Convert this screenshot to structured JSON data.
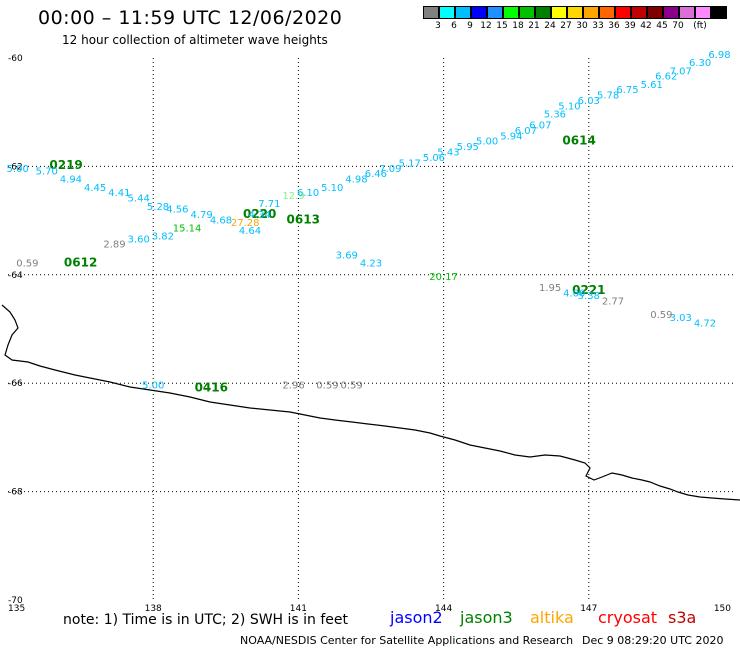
{
  "header": {
    "title": "00:00 – 11:59 UTC 12/06/2020",
    "subtitle": "12 hour collection of altimeter wave heights"
  },
  "colorbar": {
    "colors": [
      "#808080",
      "#00ffff",
      "#00bfff",
      "#0000ff",
      "#1e90ff",
      "#00ff00",
      "#00c000",
      "#008000",
      "#ffff00",
      "#ffd700",
      "#ffa500",
      "#ff6600",
      "#ff0000",
      "#c00000",
      "#800000",
      "#8b008b",
      "#da70d6",
      "#ff88ff",
      "#000000"
    ],
    "labels": [
      "3",
      "6",
      "9",
      "12",
      "15",
      "18",
      "21",
      "24",
      "27",
      "30",
      "33",
      "36",
      "39",
      "42",
      "45",
      "70",
      "(ft)"
    ]
  },
  "axes": {
    "x_ticks": [
      "135",
      "138",
      "141",
      "144",
      "147",
      "150"
    ],
    "y_ticks": [
      "-60",
      "-62",
      "-64",
      "-66",
      "-68",
      "-70"
    ]
  },
  "tracks": [
    {
      "time": "0219",
      "color": "#008000"
    },
    {
      "time": "0220",
      "color": "#008000"
    },
    {
      "time": "0613",
      "color": "#008000"
    },
    {
      "time": "0612",
      "color": "#008000"
    },
    {
      "time": "0614",
      "color": "#008000"
    },
    {
      "time": "0221",
      "color": "#008000"
    },
    {
      "time": "0416",
      "color": "#008000"
    }
  ],
  "observations": [
    {
      "lon": 135.2,
      "lat": -62.1,
      "v": "5.00",
      "c": "#00bfff"
    },
    {
      "lon": 135.8,
      "lat": -62.15,
      "v": "5.70",
      "c": "#00bfff"
    },
    {
      "lon": 136.3,
      "lat": -62.3,
      "v": "4.94",
      "c": "#00bfff"
    },
    {
      "lon": 136.8,
      "lat": -62.45,
      "v": "4.45",
      "c": "#00bfff"
    },
    {
      "lon": 137.3,
      "lat": -62.55,
      "v": "4.41",
      "c": "#00bfff"
    },
    {
      "lon": 137.7,
      "lat": -62.65,
      "v": "5.44",
      "c": "#00bfff"
    },
    {
      "lon": 138.1,
      "lat": -62.8,
      "v": "5.28",
      "c": "#00bfff"
    },
    {
      "lon": 138.5,
      "lat": -62.85,
      "v": "4.56",
      "c": "#00bfff"
    },
    {
      "lon": 139.0,
      "lat": -62.95,
      "v": "4.79",
      "c": "#00bfff"
    },
    {
      "lon": 139.4,
      "lat": -63.05,
      "v": "4.68",
      "c": "#00bfff"
    },
    {
      "lon": 139.9,
      "lat": -63.1,
      "v": "27.28",
      "c": "#ffa500"
    },
    {
      "lon": 140.2,
      "lat": -62.95,
      "v": "4.34",
      "c": "#00bfff"
    },
    {
      "lon": 140.0,
      "lat": -63.25,
      "v": "4.64",
      "c": "#00bfff"
    },
    {
      "lon": 140.4,
      "lat": -62.75,
      "v": "7.71",
      "c": "#00bfff"
    },
    {
      "lon": 140.9,
      "lat": -62.6,
      "v": "12.9",
      "c": "#90ee90"
    },
    {
      "lon": 141.2,
      "lat": -62.55,
      "v": "6.10",
      "c": "#00bfff"
    },
    {
      "lon": 141.7,
      "lat": -62.45,
      "v": "5.10",
      "c": "#00bfff"
    },
    {
      "lon": 142.2,
      "lat": -62.3,
      "v": "4.98",
      "c": "#00bfff"
    },
    {
      "lon": 142.6,
      "lat": -62.2,
      "v": "6.46",
      "c": "#00bfff"
    },
    {
      "lon": 142.9,
      "lat": -62.1,
      "v": "7.09",
      "c": "#00bfff"
    },
    {
      "lon": 143.3,
      "lat": -62.0,
      "v": "5.17",
      "c": "#00bfff"
    },
    {
      "lon": 143.8,
      "lat": -61.9,
      "v": "5.06",
      "c": "#00bfff"
    },
    {
      "lon": 144.1,
      "lat": -61.8,
      "v": "5.43",
      "c": "#00bfff"
    },
    {
      "lon": 144.5,
      "lat": -61.7,
      "v": "5.95",
      "c": "#00bfff"
    },
    {
      "lon": 144.9,
      "lat": -61.6,
      "v": "5.00",
      "c": "#00bfff"
    },
    {
      "lon": 145.4,
      "lat": -61.5,
      "v": "5.94",
      "c": "#00bfff"
    },
    {
      "lon": 145.7,
      "lat": -61.4,
      "v": "6.07",
      "c": "#00bfff"
    },
    {
      "lon": 146.0,
      "lat": -61.3,
      "v": "6.07",
      "c": "#00bfff"
    },
    {
      "lon": 146.3,
      "lat": -61.1,
      "v": "5.36",
      "c": "#00bfff"
    },
    {
      "lon": 146.6,
      "lat": -60.95,
      "v": "5.10",
      "c": "#00bfff"
    },
    {
      "lon": 147.0,
      "lat": -60.85,
      "v": "6.03",
      "c": "#00bfff"
    },
    {
      "lon": 147.4,
      "lat": -60.75,
      "v": "5.78",
      "c": "#00bfff"
    },
    {
      "lon": 147.8,
      "lat": -60.65,
      "v": "6.75",
      "c": "#00bfff"
    },
    {
      "lon": 148.3,
      "lat": -60.55,
      "v": "5.61",
      "c": "#00bfff"
    },
    {
      "lon": 148.6,
      "lat": -60.4,
      "v": "6.62",
      "c": "#00bfff"
    },
    {
      "lon": 148.9,
      "lat": -60.3,
      "v": "7.07",
      "c": "#00bfff"
    },
    {
      "lon": 149.3,
      "lat": -60.15,
      "v": "6.30",
      "c": "#00bfff"
    },
    {
      "lon": 149.7,
      "lat": -60.0,
      "v": "6.98",
      "c": "#00bfff"
    },
    {
      "lon": 135.4,
      "lat": -63.85,
      "v": "0.59",
      "c": "#808080"
    },
    {
      "lon": 137.2,
      "lat": -63.5,
      "v": "2.89",
      "c": "#808080"
    },
    {
      "lon": 137.7,
      "lat": -63.4,
      "v": "3.60",
      "c": "#00bfff"
    },
    {
      "lon": 138.2,
      "lat": -63.35,
      "v": "3.82",
      "c": "#00bfff"
    },
    {
      "lon": 138.7,
      "lat": -63.2,
      "v": "15.14",
      "c": "#00c000"
    },
    {
      "lon": 142.0,
      "lat": -63.7,
      "v": "3.69",
      "c": "#00bfff"
    },
    {
      "lon": 142.5,
      "lat": -63.85,
      "v": "4.23",
      "c": "#00bfff"
    },
    {
      "lon": 144.0,
      "lat": -64.1,
      "v": "20.17",
      "c": "#00c000"
    },
    {
      "lon": 146.2,
      "lat": -64.3,
      "v": "1.95",
      "c": "#808080"
    },
    {
      "lon": 146.7,
      "lat": -64.4,
      "v": "4.00",
      "c": "#00bfff"
    },
    {
      "lon": 147.0,
      "lat": -64.45,
      "v": "5.38",
      "c": "#00bfff"
    },
    {
      "lon": 147.5,
      "lat": -64.55,
      "v": "2.77",
      "c": "#808080"
    },
    {
      "lon": 148.5,
      "lat": -64.8,
      "v": "0.59",
      "c": "#808080"
    },
    {
      "lon": 148.9,
      "lat": -64.85,
      "v": "3.03",
      "c": "#00bfff"
    },
    {
      "lon": 149.4,
      "lat": -64.95,
      "v": "4.72",
      "c": "#00bfff"
    },
    {
      "lon": 138.0,
      "lat": -66.1,
      "v": "5.00",
      "c": "#00bfff"
    },
    {
      "lon": 140.9,
      "lat": -66.1,
      "v": "2.96",
      "c": "#808080"
    },
    {
      "lon": 141.6,
      "lat": -66.1,
      "v": "0.59",
      "c": "#808080"
    },
    {
      "lon": 142.1,
      "lat": -66.1,
      "v": "0.59",
      "c": "#808080"
    }
  ],
  "footer": {
    "note": "note: 1) Time is in UTC; 2) SWH is in feet",
    "satellites": [
      {
        "name": "jason2",
        "color": "#0000ff"
      },
      {
        "name": "jason3",
        "color": "#008000"
      },
      {
        "name": "altika",
        "color": "#ffa500"
      },
      {
        "name": "cryosat",
        "color": "#ff0000"
      },
      {
        "name": "s3a",
        "color": "#c00000"
      }
    ],
    "credit": "NOAA/NESDIS Center for Satellite Applications and Research",
    "timestamp": "Dec  9 08:29:20 UTC 2020"
  }
}
